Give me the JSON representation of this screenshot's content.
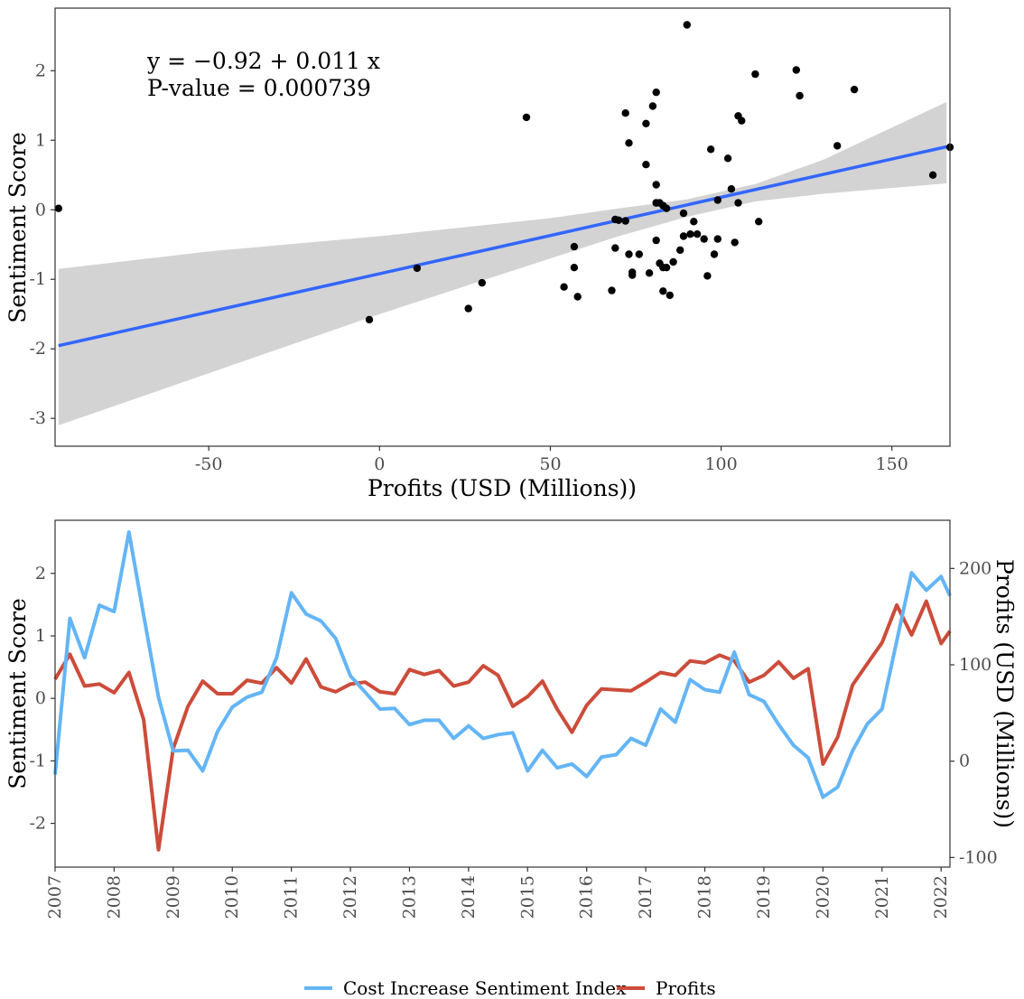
{
  "chart_data": [
    {
      "type": "scatter",
      "xlabel": "Profits (USD (Millions))",
      "ylabel": "Sentiment Score",
      "xlim": [
        -95,
        167
      ],
      "ylim": [
        -3.4,
        2.9
      ],
      "x_ticks": [
        -50,
        0,
        50,
        100,
        150
      ],
      "y_ticks": [
        -3,
        -2,
        -1,
        0,
        1,
        2
      ],
      "x_tick_labels": [
        "-50",
        "0",
        "50",
        "100",
        "150"
      ],
      "y_tick_labels": [
        "-3",
        "-2",
        "-1",
        "0",
        "1",
        "2"
      ],
      "annotation": {
        "equation": "y = −0.92 + 0.011 x",
        "pvalue": "P-value = 0.000739"
      },
      "regression": {
        "intercept": -0.92,
        "slope": 0.011,
        "color": "#3366FF"
      },
      "confidence_band": {
        "color": "#d3d3d3",
        "x": [
          -94,
          -50,
          0,
          50,
          70,
          90,
          110,
          130,
          166
        ],
        "lower": [
          -3.1,
          -2.35,
          -1.5,
          -0.7,
          -0.38,
          -0.1,
          0.12,
          0.23,
          0.38
        ],
        "upper": [
          -0.85,
          -0.6,
          -0.38,
          -0.12,
          0.02,
          0.15,
          0.37,
          0.72,
          1.55
        ]
      },
      "points": {
        "color": "#000000",
        "x": [
          -94,
          -3,
          11,
          26,
          30,
          43,
          54,
          57,
          57,
          58,
          68,
          69,
          69,
          70,
          72,
          72,
          73,
          73,
          74,
          74,
          76,
          78,
          78,
          79,
          80,
          81,
          81,
          81,
          81,
          81,
          82,
          82,
          83,
          83,
          83,
          84,
          84,
          85,
          86,
          88,
          89,
          89,
          90,
          91,
          92,
          93,
          95,
          96,
          97,
          98,
          99,
          99,
          102,
          103,
          104,
          105,
          105,
          106,
          110,
          111,
          122,
          123,
          134,
          139,
          162,
          167
        ],
        "y": [
          0.02,
          -1.58,
          -0.84,
          -1.42,
          -1.05,
          1.33,
          -1.11,
          -0.53,
          -0.83,
          -1.25,
          -1.16,
          -0.14,
          -0.55,
          -0.15,
          1.39,
          -0.16,
          0.96,
          -0.64,
          -0.9,
          -0.94,
          -0.64,
          0.65,
          1.24,
          -0.91,
          1.49,
          1.69,
          0.36,
          0.1,
          -0.44,
          0.1,
          0.1,
          -0.77,
          0.06,
          -0.83,
          -1.17,
          0.02,
          -0.83,
          -1.23,
          -0.75,
          -0.58,
          -0.05,
          -0.38,
          2.66,
          -0.35,
          -0.17,
          -0.35,
          -0.42,
          -0.95,
          0.87,
          -0.64,
          -0.42,
          0.14,
          0.74,
          0.3,
          -0.47,
          1.35,
          0.1,
          1.28,
          1.95,
          -0.17,
          2.01,
          1.64,
          0.92,
          1.73,
          0.5,
          0.9
        ]
      }
    },
    {
      "type": "line",
      "ylabel": "Sentiment Score",
      "ylabel_right": "Profits (USD (Millions))",
      "xlim": [
        2007,
        2022.15
      ],
      "ylim_left": [
        -2.7,
        2.85
      ],
      "ylim_right": [
        -110,
        250
      ],
      "y_ticks_left": [
        -2,
        -1,
        0,
        1,
        2
      ],
      "y_tick_labels_left": [
        "-2",
        "-1",
        "0",
        "1",
        "2"
      ],
      "y_ticks_right": [
        -100,
        0,
        100,
        200
      ],
      "y_tick_labels_right": [
        "-100",
        "0",
        "100",
        "200"
      ],
      "x_ticks": [
        2007,
        2008,
        2009,
        2010,
        2011,
        2012,
        2013,
        2014,
        2015,
        2016,
        2017,
        2018,
        2019,
        2020,
        2021,
        2022
      ],
      "x_tick_labels": [
        "2007",
        "2008",
        "2009",
        "2010",
        "2011",
        "2012",
        "2013",
        "2014",
        "2015",
        "2016",
        "2017",
        "2018",
        "2019",
        "2020",
        "2021",
        "2022"
      ],
      "x": [
        2007.0,
        2007.25,
        2007.5,
        2007.75,
        2008.0,
        2008.25,
        2008.5,
        2008.75,
        2009.0,
        2009.25,
        2009.5,
        2009.75,
        2010.0,
        2010.25,
        2010.5,
        2010.75,
        2011.0,
        2011.25,
        2011.5,
        2011.75,
        2012.0,
        2012.25,
        2012.5,
        2012.75,
        2013.0,
        2013.25,
        2013.5,
        2013.75,
        2014.0,
        2014.25,
        2014.5,
        2014.75,
        2015.0,
        2015.25,
        2015.5,
        2015.75,
        2016.0,
        2016.25,
        2016.5,
        2016.75,
        2017.0,
        2017.25,
        2017.5,
        2017.75,
        2018.0,
        2018.25,
        2018.5,
        2018.75,
        2019.0,
        2019.25,
        2019.5,
        2019.75,
        2020.0,
        2020.25,
        2020.5,
        2020.75,
        2021.0,
        2021.25,
        2021.5,
        2021.75,
        2022.0,
        2022.15
      ],
      "series": [
        {
          "name": "Cost Increase Sentiment Index",
          "color": "#64b5f6",
          "axis": "left",
          "values": [
            -1.22,
            1.28,
            0.65,
            1.49,
            1.39,
            2.66,
            1.33,
            0.02,
            -0.84,
            -0.83,
            -1.16,
            -0.53,
            -0.14,
            0.02,
            0.1,
            0.65,
            1.69,
            1.35,
            1.24,
            0.96,
            0.36,
            0.1,
            -0.17,
            -0.16,
            -0.42,
            -0.35,
            -0.35,
            -0.64,
            -0.44,
            -0.64,
            -0.58,
            -0.55,
            -1.16,
            -0.83,
            -1.11,
            -1.05,
            -1.25,
            -0.94,
            -0.9,
            -0.64,
            -0.75,
            -0.17,
            -0.38,
            0.3,
            0.14,
            0.1,
            0.74,
            0.06,
            -0.05,
            -0.42,
            -0.75,
            -0.95,
            -1.58,
            -1.42,
            -0.84,
            -0.41,
            -0.17,
            0.92,
            2.01,
            1.73,
            1.95,
            1.64
          ]
        },
        {
          "name": "Profits",
          "color": "#cc4c3a",
          "axis": "right",
          "values": [
            85,
            111,
            78,
            80,
            71,
            92,
            43,
            -92,
            13,
            57,
            83,
            70,
            70,
            84,
            81,
            97,
            81,
            106,
            77,
            72,
            80,
            82,
            72,
            70,
            95,
            90,
            94,
            78,
            82,
            99,
            89,
            57,
            67,
            83,
            54,
            30,
            58,
            75,
            74,
            73,
            82,
            92,
            89,
            104,
            102,
            110,
            104,
            82,
            89,
            103,
            86,
            96,
            -3,
            25,
            79,
            101,
            123,
            162,
            131,
            166,
            122,
            135
          ]
        }
      ]
    }
  ],
  "legend": {
    "position": "bottom",
    "items": [
      {
        "label": "Cost Increase Sentiment Index",
        "color": "#64b5f6"
      },
      {
        "label": "Profits",
        "color": "#cc4c3a"
      }
    ]
  }
}
